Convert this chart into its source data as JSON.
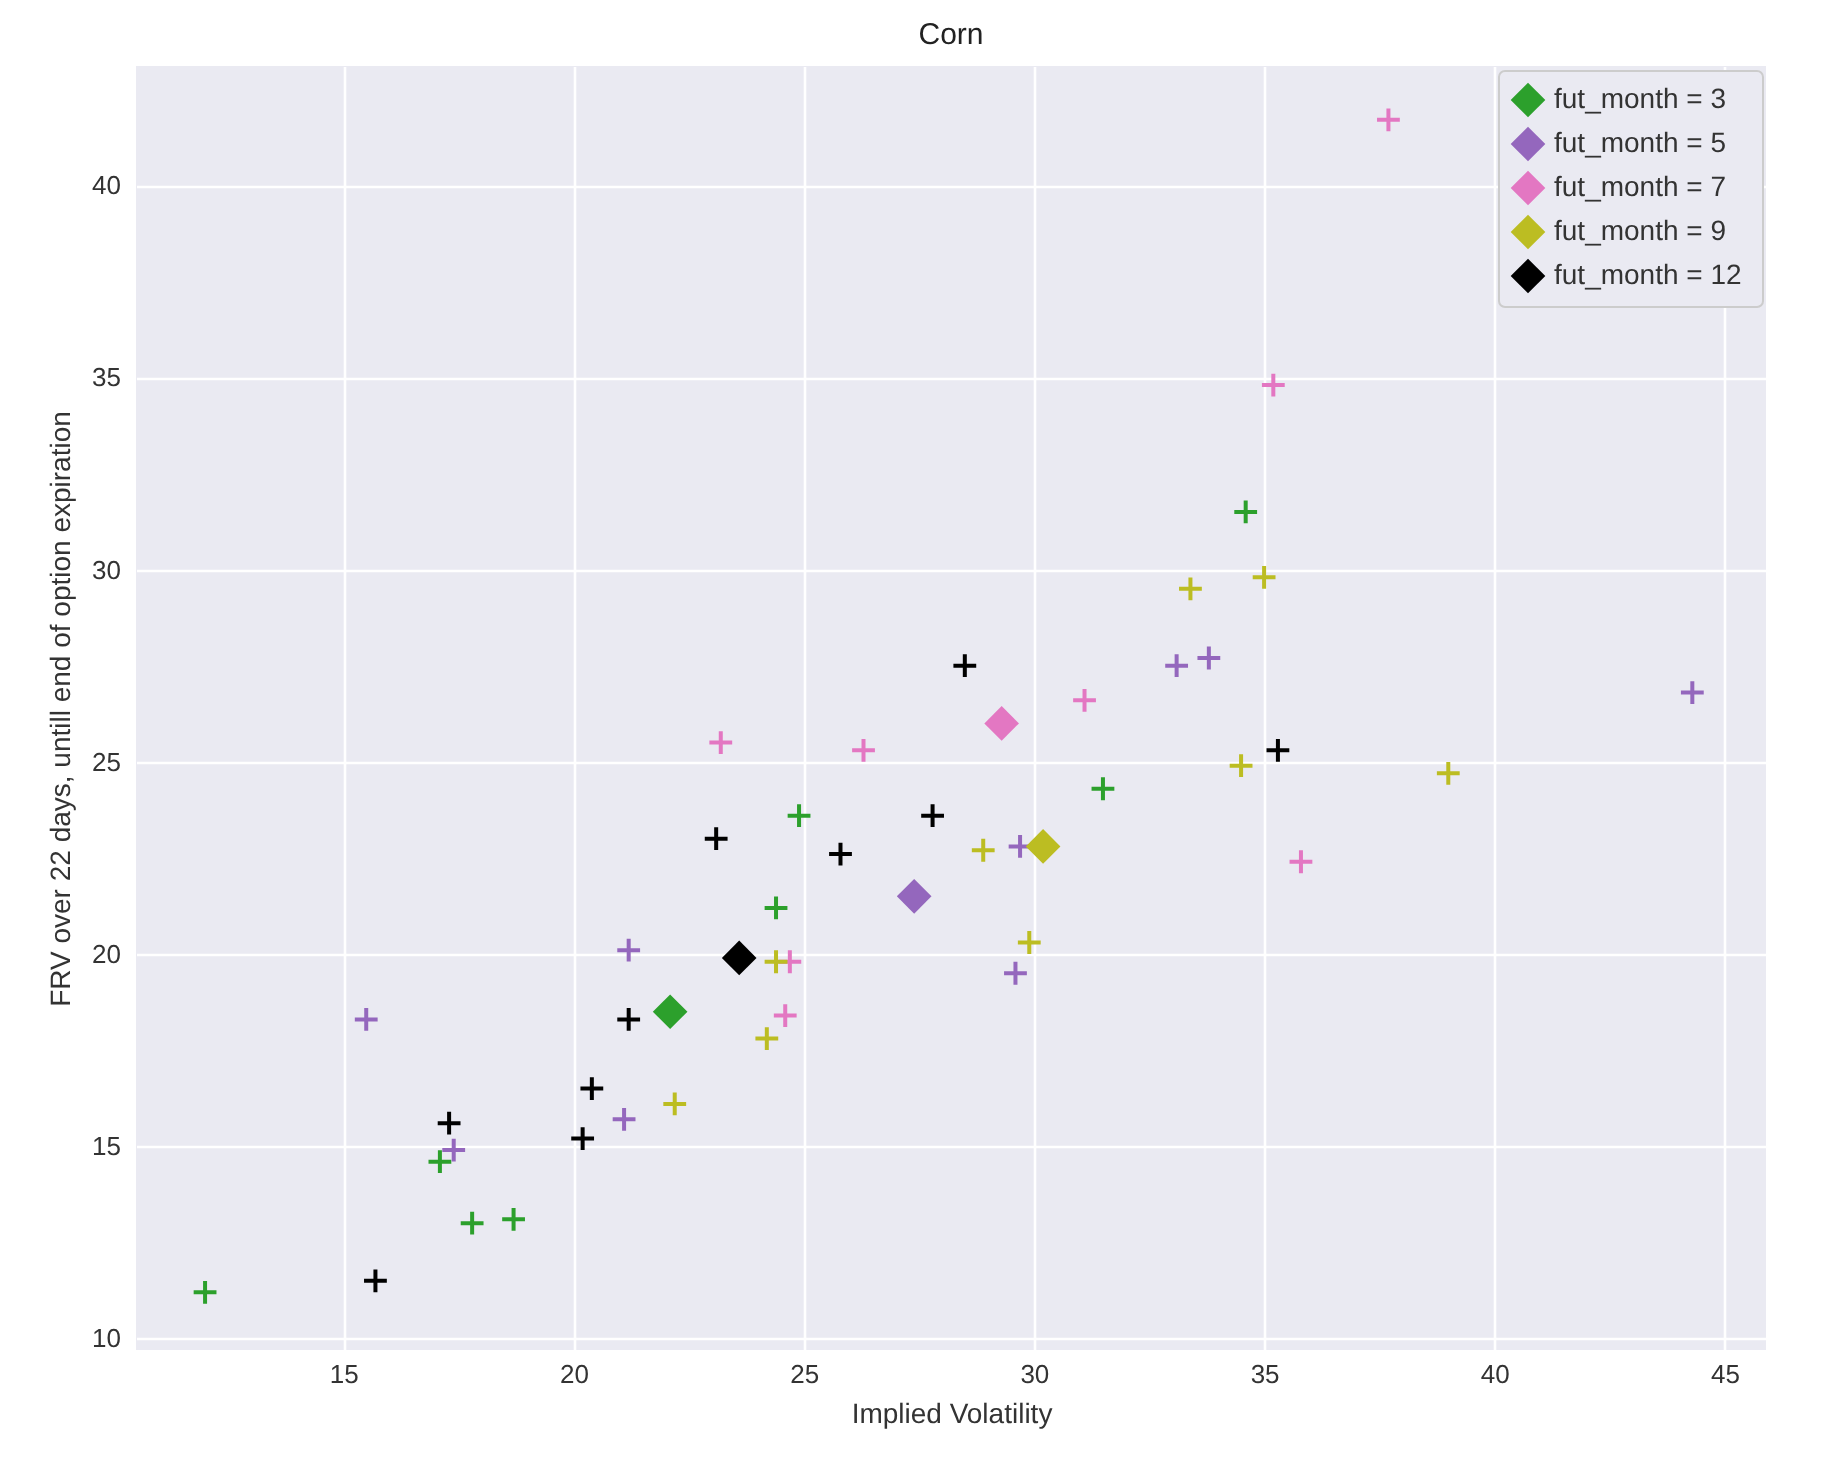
{
  "chart_data": {
    "type": "scatter",
    "title": "Corn",
    "xlabel": "Implied Volatility",
    "ylabel": "FRV over 22 days, untill end of option expiration",
    "xlim": [
      10.5,
      45.9
    ],
    "ylim": [
      9.7,
      43.1
    ],
    "xticks": [
      15,
      20,
      25,
      30,
      35,
      40,
      45
    ],
    "yticks": [
      10,
      15,
      20,
      25,
      30,
      35,
      40
    ],
    "grid": true,
    "legend": "top right",
    "series": [
      {
        "color": "#2ca02c",
        "marker": "cross",
        "x": [
          12.0,
          17.1,
          17.8,
          18.7,
          24.4,
          24.9,
          31.5,
          34.6
        ],
        "values": [
          11.2,
          14.6,
          13.0,
          13.1,
          21.2,
          23.6,
          24.3,
          31.5
        ]
      },
      {
        "color": "#9467bd",
        "marker": "cross",
        "x": [
          15.5,
          17.4,
          21.2,
          21.1,
          29.7,
          29.6,
          33.1,
          33.8,
          44.3
        ],
        "values": [
          18.3,
          14.9,
          20.1,
          15.7,
          22.8,
          19.5,
          27.5,
          27.7,
          26.8
        ]
      },
      {
        "color": "#e377c2",
        "marker": "cross",
        "x": [
          37.7,
          35.2,
          31.1,
          35.8,
          23.2,
          26.3,
          24.7,
          24.6
        ],
        "values": [
          41.7,
          34.8,
          26.6,
          22.4,
          25.5,
          25.3,
          19.8,
          18.4
        ]
      },
      {
        "color": "#bcbd22",
        "marker": "cross",
        "x": [
          22.2,
          24.2,
          24.4,
          28.9,
          29.9,
          33.4,
          35.0,
          34.5,
          39.0
        ],
        "values": [
          16.1,
          17.8,
          19.8,
          22.7,
          20.3,
          29.5,
          29.8,
          24.9,
          24.7
        ]
      },
      {
        "color": "#000000",
        "marker": "cross",
        "x": [
          15.7,
          17.3,
          20.4,
          20.2,
          21.2,
          23.1,
          25.8,
          27.8,
          28.5,
          35.3
        ],
        "values": [
          11.5,
          15.6,
          16.5,
          15.2,
          18.3,
          23.0,
          22.6,
          23.6,
          27.5,
          25.3
        ]
      },
      {
        "name": "fut_month  = 3",
        "color": "#2ca02c",
        "marker": "diamond",
        "x": [
          22.1
        ],
        "values": [
          18.5
        ]
      },
      {
        "name": "fut_month  = 5",
        "color": "#9467bd",
        "marker": "diamond",
        "x": [
          27.4
        ],
        "values": [
          21.5
        ]
      },
      {
        "name": "fut_month  = 7",
        "color": "#e377c2",
        "marker": "diamond",
        "x": [
          29.3
        ],
        "values": [
          26.0
        ]
      },
      {
        "name": "fut_month  = 9",
        "color": "#bcbd22",
        "marker": "diamond",
        "x": [
          30.2
        ],
        "values": [
          22.8
        ]
      },
      {
        "name": "fut_month  = 12",
        "color": "#000000",
        "marker": "diamond",
        "x": [
          23.6
        ],
        "values": [
          19.9
        ]
      }
    ]
  }
}
